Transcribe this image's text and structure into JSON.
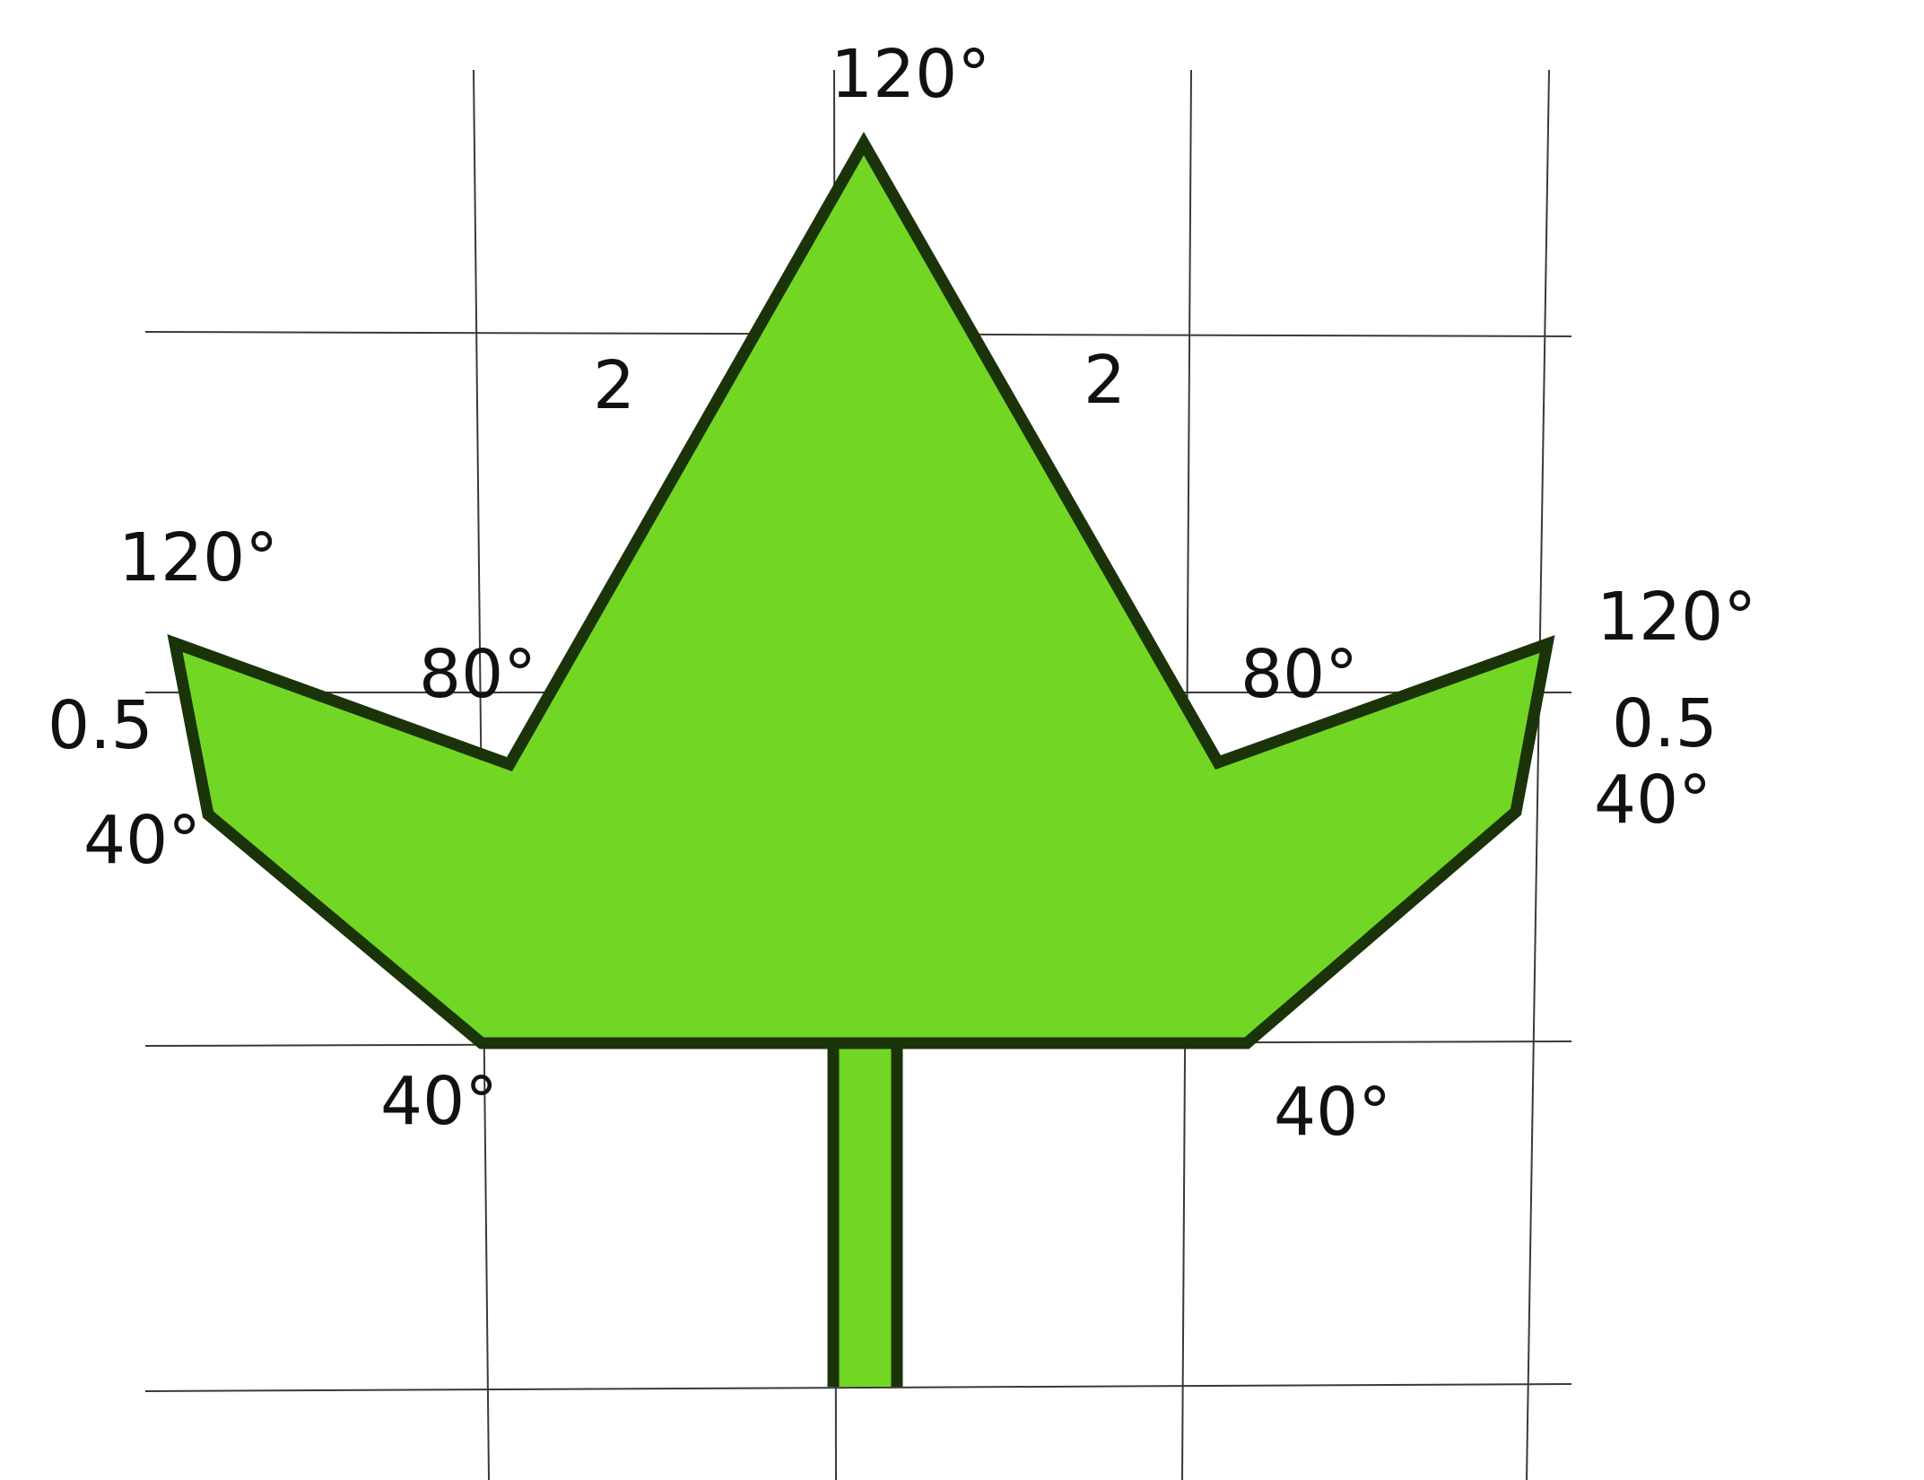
{
  "diagram": {
    "colors": {
      "leaf_fill": "#72d624",
      "outline": "#1a3309",
      "grid": "#3a3a3a",
      "text": "#111111",
      "background": "#ffffff"
    },
    "labels": {
      "top_angle": "120°",
      "side_upper_left": "2",
      "side_upper_right": "2",
      "left_tip_angle": "120°",
      "right_tip_angle": "120°",
      "left_notch_angle": "80°",
      "right_notch_angle": "80°",
      "left_side_length": "0.5",
      "right_side_length": "0.5",
      "left_lower_angle": "40°",
      "right_lower_angle": "40°",
      "left_base_angle": "40°",
      "right_base_angle": "40°"
    }
  }
}
